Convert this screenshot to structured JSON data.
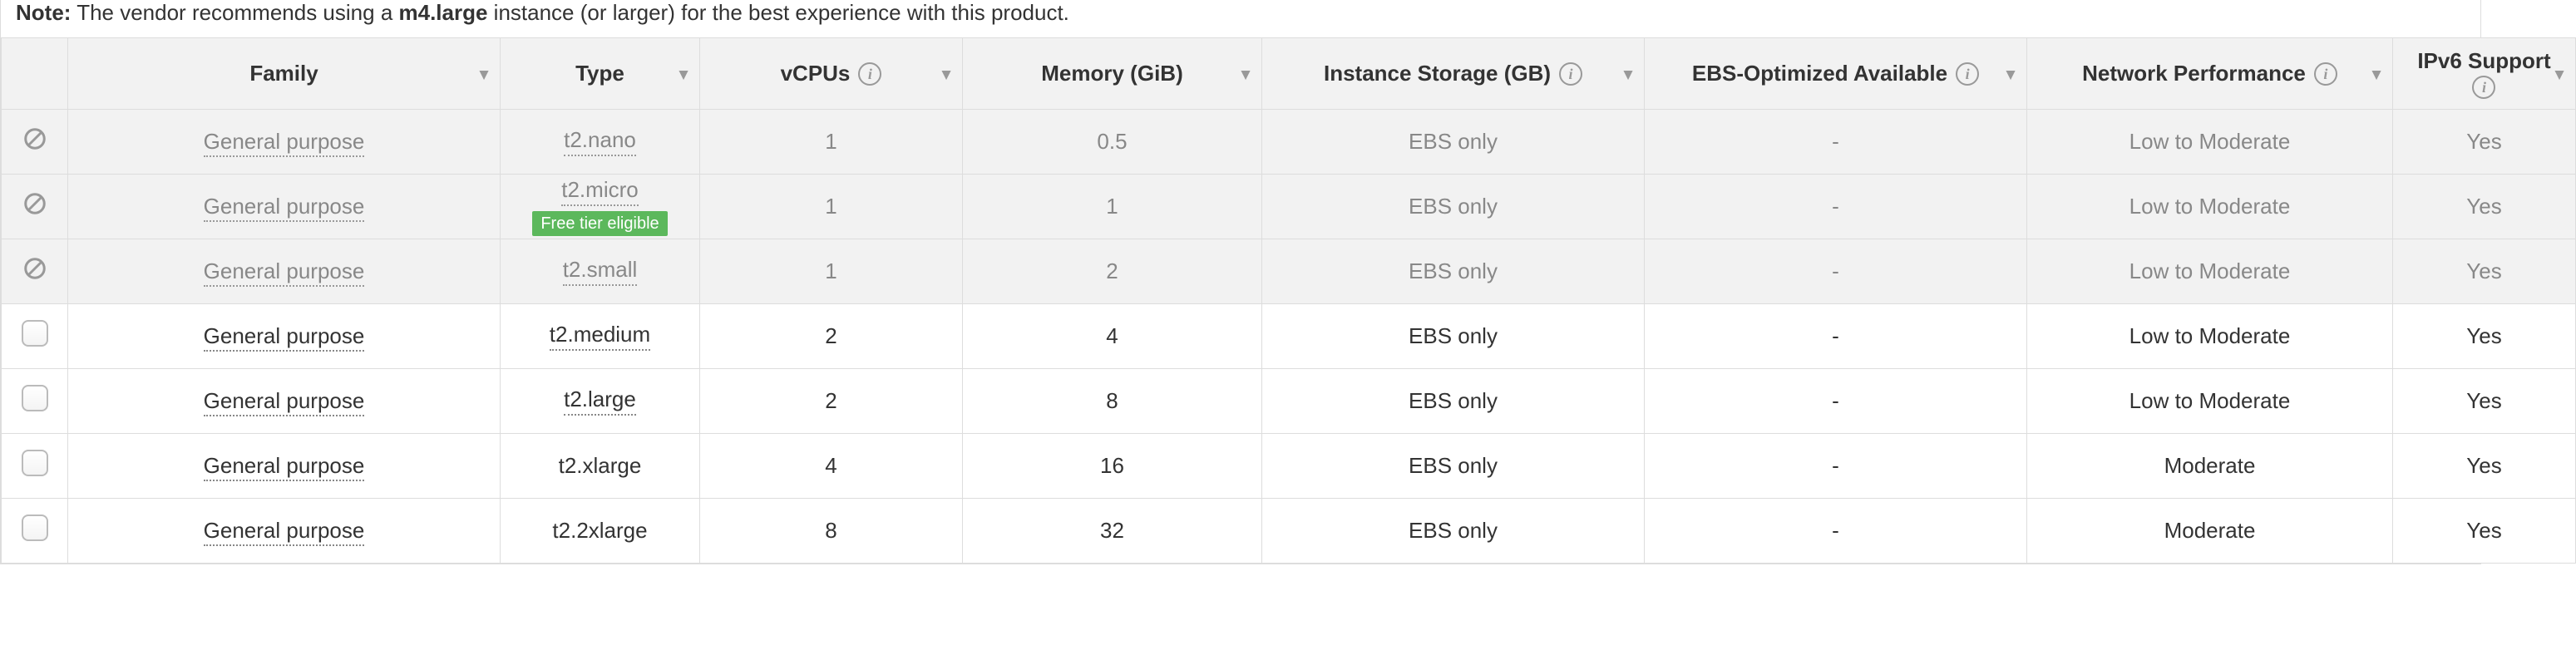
{
  "note": {
    "prefix": "Note:",
    "before": " The vendor recommends using a ",
    "bold": "m4.large",
    "after": " instance (or larger) for the best experience with this product."
  },
  "columns": {
    "family": "Family",
    "type": "Type",
    "vcpus": "vCPUs",
    "memory": "Memory (GiB)",
    "storage": "Instance Storage (GB)",
    "ebs": "EBS-Optimized Available",
    "net": "Network Performance",
    "ipv6": "IPv6 Support"
  },
  "badge_free_tier": "Free tier eligible",
  "rows": [
    {
      "disabled": true,
      "family": "General purpose",
      "type": "t2.nano",
      "type_dotted": true,
      "free_tier": false,
      "vcpus": "1",
      "memory": "0.5",
      "storage": "EBS only",
      "ebs": "-",
      "net": "Low to Moderate",
      "ipv6": "Yes"
    },
    {
      "disabled": true,
      "family": "General purpose",
      "type": "t2.micro",
      "type_dotted": true,
      "free_tier": true,
      "vcpus": "1",
      "memory": "1",
      "storage": "EBS only",
      "ebs": "-",
      "net": "Low to Moderate",
      "ipv6": "Yes"
    },
    {
      "disabled": true,
      "family": "General purpose",
      "type": "t2.small",
      "type_dotted": true,
      "free_tier": false,
      "vcpus": "1",
      "memory": "2",
      "storage": "EBS only",
      "ebs": "-",
      "net": "Low to Moderate",
      "ipv6": "Yes"
    },
    {
      "disabled": false,
      "family": "General purpose",
      "type": "t2.medium",
      "type_dotted": true,
      "free_tier": false,
      "vcpus": "2",
      "memory": "4",
      "storage": "EBS only",
      "ebs": "-",
      "net": "Low to Moderate",
      "ipv6": "Yes"
    },
    {
      "disabled": false,
      "family": "General purpose",
      "type": "t2.large",
      "type_dotted": true,
      "free_tier": false,
      "vcpus": "2",
      "memory": "8",
      "storage": "EBS only",
      "ebs": "-",
      "net": "Low to Moderate",
      "ipv6": "Yes"
    },
    {
      "disabled": false,
      "family": "General purpose",
      "type": "t2.xlarge",
      "type_dotted": false,
      "free_tier": false,
      "vcpus": "4",
      "memory": "16",
      "storage": "EBS only",
      "ebs": "-",
      "net": "Moderate",
      "ipv6": "Yes"
    },
    {
      "disabled": false,
      "family": "General purpose",
      "type": "t2.2xlarge",
      "type_dotted": false,
      "free_tier": false,
      "vcpus": "8",
      "memory": "32",
      "storage": "EBS only",
      "ebs": "-",
      "net": "Moderate",
      "ipv6": "Yes"
    }
  ],
  "colors": {
    "border": "#dddddd",
    "header_bg": "#f2f2f2",
    "disabled_bg": "#f2f2f2",
    "text": "#333333",
    "muted": "#888888",
    "badge_bg": "#5cb85c",
    "badge_text": "#ffffff",
    "icon_gray": "#999999"
  }
}
